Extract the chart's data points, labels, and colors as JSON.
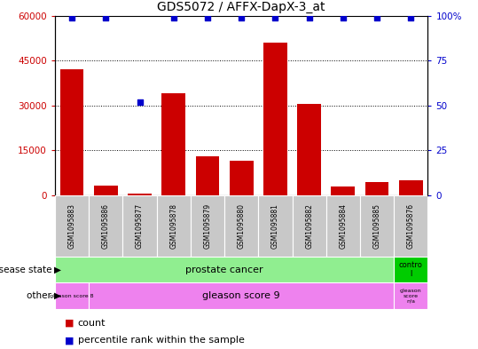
{
  "title": "GDS5072 / AFFX-DapX-3_at",
  "samples": [
    "GSM1095883",
    "GSM1095886",
    "GSM1095877",
    "GSM1095878",
    "GSM1095879",
    "GSM1095880",
    "GSM1095881",
    "GSM1095882",
    "GSM1095884",
    "GSM1095885",
    "GSM1095876"
  ],
  "counts": [
    42000,
    3200,
    500,
    34000,
    13000,
    11500,
    51000,
    30500,
    3000,
    4500,
    5000
  ],
  "percentile_ranks": [
    99,
    99,
    52,
    99,
    99,
    99,
    99,
    99,
    99,
    99,
    99
  ],
  "ylim_left": [
    0,
    60000
  ],
  "ylim_right": [
    0,
    100
  ],
  "yticks_left": [
    0,
    15000,
    30000,
    45000,
    60000
  ],
  "yticks_right": [
    0,
    25,
    50,
    75,
    100
  ],
  "ytick_labels_left": [
    "0",
    "15000",
    "30000",
    "45000",
    "60000"
  ],
  "ytick_labels_right": [
    "0",
    "25",
    "50",
    "75",
    "100%"
  ],
  "bar_color": "#CC0000",
  "dot_color": "#0000CC",
  "left_tick_color": "#CC0000",
  "right_tick_color": "#0000CC",
  "prostate_color": "#90EE90",
  "control_color": "#00CC00",
  "gleason8_color": "#EE82EE",
  "gleason9_color": "#EE82EE",
  "na_color": "#EE82EE",
  "label_bg_color": "#C8C8C8",
  "legend_count_color": "#CC0000",
  "legend_pct_color": "#0000CC"
}
